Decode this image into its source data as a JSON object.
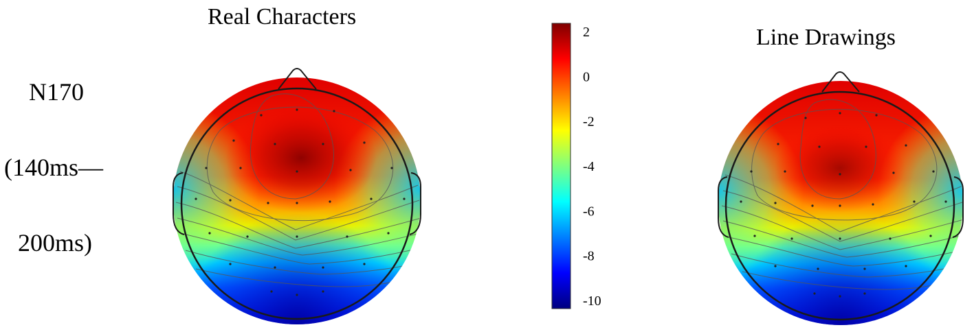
{
  "labels": {
    "left_title": "Real Characters",
    "right_title": "Line Drawings",
    "component": "N170",
    "window_start": "(140ms—",
    "window_end": "200ms)"
  },
  "colorbar": {
    "min": -10,
    "max": 2,
    "ticks": [
      2,
      0,
      -2,
      -4,
      -6,
      -8,
      -10
    ],
    "colormap": [
      "#00007f",
      "#0000ff",
      "#007fff",
      "#00ffff",
      "#7fff7f",
      "#ffff00",
      "#ff7f00",
      "#ff0000",
      "#7f0000"
    ]
  },
  "colors": {
    "outline": "#1a1a1a",
    "contour": "#555555"
  }
}
